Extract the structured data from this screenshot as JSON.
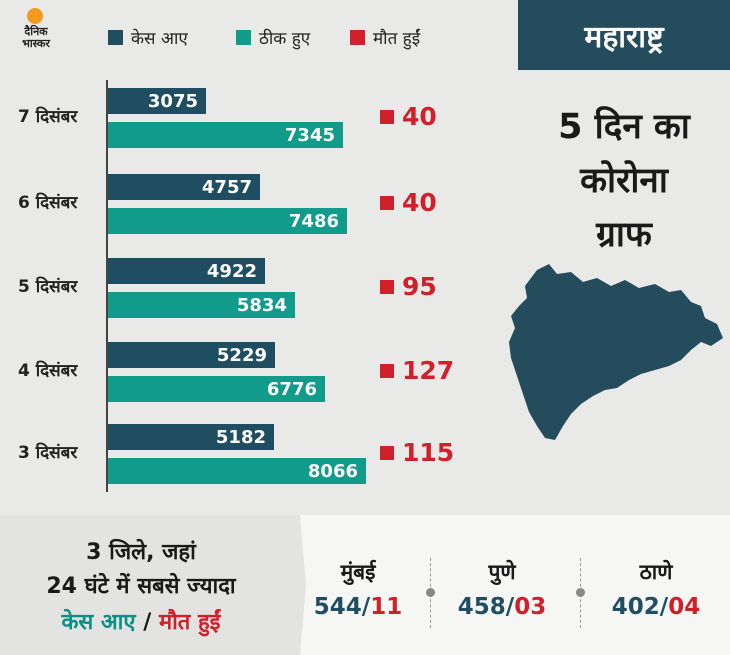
{
  "brand": {
    "logo_text": "दैनिक भास्कर"
  },
  "legend": [
    {
      "label": "केस आए",
      "color": "#1f4e63"
    },
    {
      "label": "ठीक हुए",
      "color": "#109b8a"
    },
    {
      "label": "मौत हुईं",
      "color": "#d0202a"
    }
  ],
  "panel": {
    "state": "महाराष्ट्र",
    "title_lines": [
      "5 दिन का",
      "कोरोना",
      "ग्राफ"
    ]
  },
  "chart_data": {
    "type": "bar",
    "orientation": "horizontal",
    "categories": [
      "7 दिसंबर",
      "6 दिसंबर",
      "5 दिसंबर",
      "4 दिसंबर",
      "3 दिसंबर"
    ],
    "series": [
      {
        "name": "केस आए",
        "values": [
          3075,
          4757,
          4922,
          5229,
          5182
        ]
      },
      {
        "name": "ठीक हुए",
        "values": [
          7345,
          7486,
          5834,
          6776,
          8066
        ]
      },
      {
        "name": "मौत हुईं",
        "values": [
          40,
          40,
          95,
          127,
          115
        ]
      }
    ]
  },
  "bottom": {
    "line1": "3 जिले, जहां",
    "line2": "24 घंटे में सबसे ज्यादा",
    "line3_cases": "केस आए",
    "line3_sep": " / ",
    "line3_deaths": "मौत हुईं",
    "cities": [
      {
        "name": "मुंबई",
        "cases": "544",
        "deaths": "11"
      },
      {
        "name": "पुणे",
        "cases": "458",
        "deaths": "03"
      },
      {
        "name": "ठाणे",
        "cases": "402",
        "deaths": "04"
      }
    ]
  }
}
